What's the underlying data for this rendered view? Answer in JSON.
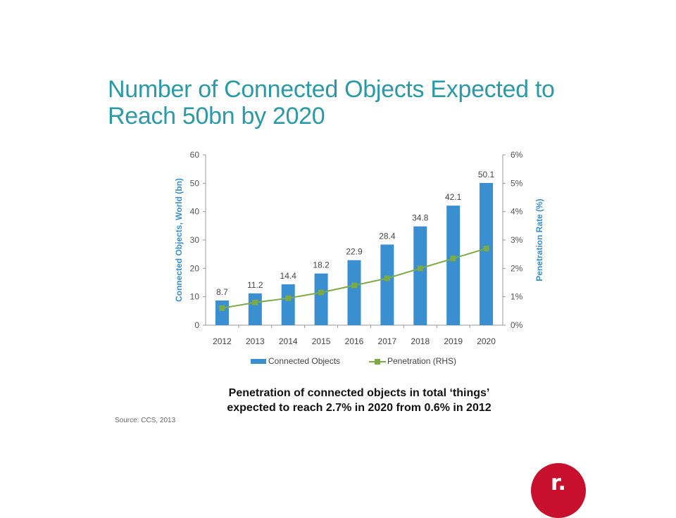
{
  "title_line1": "Number of Connected Objects Expected to",
  "title_line2": "Reach 50bn by 2020",
  "caption_line1": "Penetration of connected objects in total ‘things’",
  "caption_line2": "expected to reach 2.7% in 2020 from 0.6% in 2012",
  "source": "Source: CCS, 2013",
  "logo_text": "r.",
  "colors": {
    "bar": "#3a8fd1",
    "line": "#7cab45",
    "title": "#2a9aa8",
    "axis_label": "#3a8fd1"
  },
  "chart_data": {
    "type": "bar",
    "categories": [
      "2012",
      "2013",
      "2014",
      "2015",
      "2016",
      "2017",
      "2018",
      "2019",
      "2020"
    ],
    "series": [
      {
        "name": "Connected Objects",
        "type": "bar",
        "axis": "left",
        "values": [
          8.7,
          11.2,
          14.4,
          18.2,
          22.9,
          28.4,
          34.8,
          42.1,
          50.1
        ],
        "labels": [
          "8.7",
          "11.2",
          "14.4",
          "18.2",
          "22.9",
          "28.4",
          "34.8",
          "42.1",
          "50.1"
        ]
      },
      {
        "name": "Penetration (RHS)",
        "type": "line",
        "axis": "right",
        "values": [
          0.6,
          0.8,
          0.95,
          1.15,
          1.4,
          1.65,
          2.0,
          2.35,
          2.7
        ]
      }
    ],
    "ylabel": "Connected Objects, World (bn)",
    "y2label": "Penetration Rate (%)",
    "ylim": [
      0,
      60
    ],
    "y2lim": [
      0,
      6
    ],
    "yticks": [
      "0",
      "10",
      "20",
      "30",
      "40",
      "50",
      "60"
    ],
    "y2ticks": [
      "0%",
      "1%",
      "2%",
      "3%",
      "4%",
      "5%",
      "6%"
    ],
    "legend_position": "bottom",
    "grid": false
  }
}
